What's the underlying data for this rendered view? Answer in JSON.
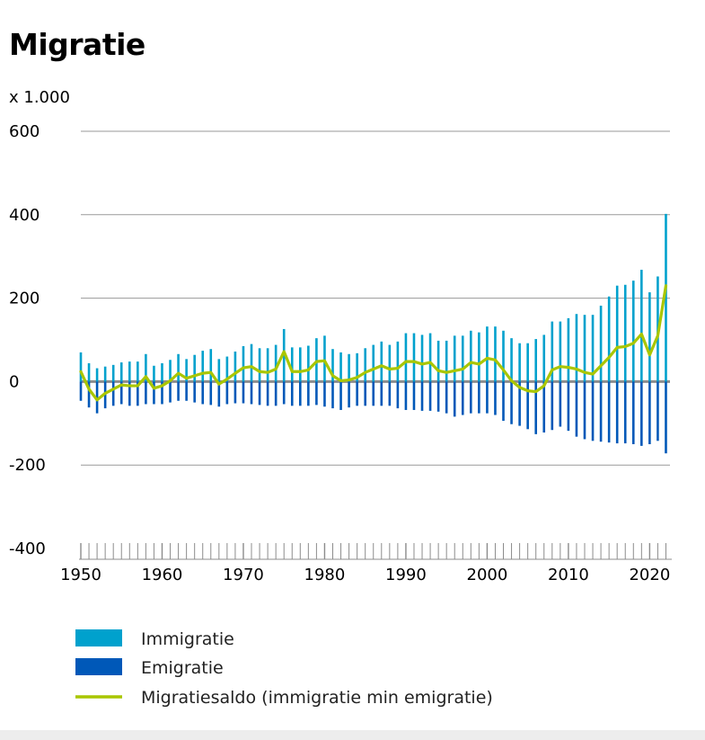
{
  "chart_data": {
    "type": "bar+line",
    "title": "Migratie",
    "unit_label": "x 1.000",
    "ylim": [
      -400,
      600
    ],
    "yticks": [
      -400,
      -200,
      0,
      200,
      400,
      600
    ],
    "xticks": [
      1950,
      1960,
      1970,
      1980,
      1990,
      2000,
      2010,
      2020
    ],
    "x": [
      1950,
      1951,
      1952,
      1953,
      1954,
      1955,
      1956,
      1957,
      1958,
      1959,
      1960,
      1961,
      1962,
      1963,
      1964,
      1965,
      1966,
      1967,
      1968,
      1969,
      1970,
      1971,
      1972,
      1973,
      1974,
      1975,
      1976,
      1977,
      1978,
      1979,
      1980,
      1981,
      1982,
      1983,
      1984,
      1985,
      1986,
      1987,
      1988,
      1989,
      1990,
      1991,
      1992,
      1993,
      1994,
      1995,
      1996,
      1997,
      1998,
      1999,
      2000,
      2001,
      2002,
      2003,
      2004,
      2005,
      2006,
      2007,
      2008,
      2009,
      2010,
      2011,
      2012,
      2013,
      2014,
      2015,
      2016,
      2017,
      2018,
      2019,
      2020,
      2021,
      2022
    ],
    "series": [
      {
        "name": "Immigratie",
        "color": "#00a1cd",
        "values": [
          70,
          44,
          32,
          36,
          40,
          46,
          48,
          48,
          66,
          38,
          44,
          52,
          66,
          54,
          64,
          74,
          78,
          54,
          60,
          72,
          85,
          90,
          80,
          80,
          88,
          126,
          82,
          82,
          86,
          104,
          110,
          78,
          70,
          66,
          68,
          80,
          88,
          96,
          88,
          96,
          116,
          116,
          112,
          116,
          98,
          98,
          110,
          110,
          122,
          118,
          132,
          132,
          122,
          104,
          92,
          92,
          102,
          112,
          144,
          144,
          152,
          162,
          160,
          160,
          182,
          204,
          230,
          232,
          242,
          268,
          214,
          252,
          402
        ]
      },
      {
        "name": "Emigratie",
        "color": "#0058b8",
        "values": [
          -46,
          -62,
          -76,
          -64,
          -58,
          -54,
          -58,
          -58,
          -54,
          -54,
          -54,
          -50,
          -46,
          -46,
          -50,
          -54,
          -56,
          -60,
          -54,
          -52,
          -52,
          -54,
          -56,
          -58,
          -58,
          -54,
          -58,
          -58,
          -58,
          -56,
          -60,
          -64,
          -68,
          -62,
          -58,
          -58,
          -58,
          -58,
          -58,
          -64,
          -68,
          -68,
          -70,
          -70,
          -72,
          -76,
          -84,
          -80,
          -76,
          -76,
          -76,
          -80,
          -94,
          -102,
          -106,
          -114,
          -126,
          -122,
          -116,
          -108,
          -118,
          -132,
          -138,
          -142,
          -144,
          -146,
          -148,
          -148,
          -150,
          -154,
          -150,
          -142,
          -172
        ]
      },
      {
        "name": "Migratiesaldo (immigratie min emigratie)",
        "color": "#a9c600",
        "values": [
          24,
          -18,
          -44,
          -28,
          -18,
          -8,
          -10,
          -10,
          12,
          -16,
          -10,
          2,
          20,
          8,
          14,
          20,
          22,
          -6,
          6,
          20,
          33,
          36,
          24,
          22,
          30,
          72,
          24,
          24,
          28,
          48,
          50,
          14,
          2,
          4,
          10,
          22,
          30,
          38,
          30,
          32,
          48,
          48,
          42,
          46,
          26,
          22,
          26,
          30,
          46,
          42,
          56,
          52,
          28,
          2,
          -14,
          -22,
          -24,
          -10,
          28,
          36,
          34,
          30,
          22,
          18,
          38,
          58,
          82,
          84,
          92,
          114,
          64,
          110,
          230
        ]
      }
    ]
  }
}
